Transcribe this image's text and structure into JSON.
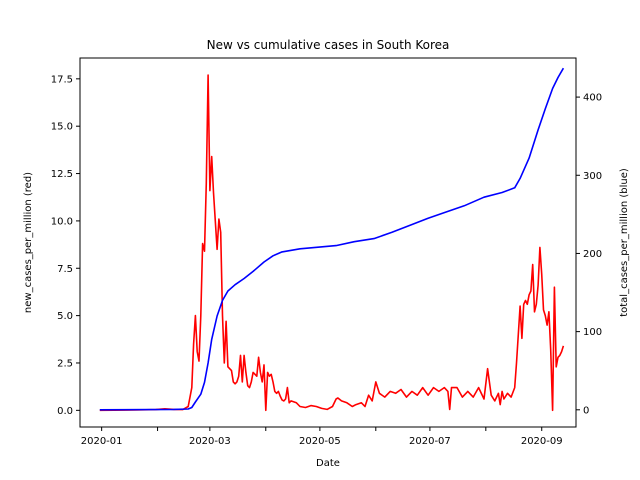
{
  "chart_data": {
    "type": "line",
    "title": "New vs cumulative cases in South Korea",
    "xlabel": "Date",
    "ylabel_left": "new_cases_per_million (red)",
    "ylabel_right": "total_cases_per_million (blue)",
    "x_range": [
      "2019-12-20",
      "2020-09-20"
    ],
    "ylim_left": [
      -0.88,
      18.6
    ],
    "ylim_right": [
      -22,
      450
    ],
    "x_ticks": [
      "2020-01",
      "2020-03",
      "2020-05",
      "2020-07",
      "2020-09"
    ],
    "x_minor_ticks": [
      "2020-02",
      "2020-04",
      "2020-06",
      "2020-08"
    ],
    "y_ticks_left": [
      "0.0",
      "2.5",
      "5.0",
      "7.5",
      "10.0",
      "12.5",
      "15.0",
      "17.5"
    ],
    "y_ticks_right": [
      "0",
      "100",
      "200",
      "300",
      "400"
    ],
    "grid": false,
    "series": [
      {
        "color": "#ff0000",
        "axis": "left",
        "points": [
          [
            "2019-12-31",
            0.0
          ],
          [
            "2020-01-20",
            0.02
          ],
          [
            "2020-01-31",
            0.04
          ],
          [
            "2020-02-05",
            0.08
          ],
          [
            "2020-02-10",
            0.05
          ],
          [
            "2020-02-15",
            0.04
          ],
          [
            "2020-02-18",
            0.2
          ],
          [
            "2020-02-20",
            1.2
          ],
          [
            "2020-02-21",
            3.5
          ],
          [
            "2020-02-22",
            5.0
          ],
          [
            "2020-02-23",
            3.1
          ],
          [
            "2020-02-24",
            2.6
          ],
          [
            "2020-02-25",
            5.0
          ],
          [
            "2020-02-26",
            8.8
          ],
          [
            "2020-02-27",
            8.4
          ],
          [
            "2020-02-28",
            12.0
          ],
          [
            "2020-02-29",
            17.7
          ],
          [
            "2020-03-01",
            11.6
          ],
          [
            "2020-03-02",
            13.4
          ],
          [
            "2020-03-03",
            11.5
          ],
          [
            "2020-03-04",
            10.0
          ],
          [
            "2020-03-05",
            8.5
          ],
          [
            "2020-03-06",
            10.1
          ],
          [
            "2020-03-07",
            9.4
          ],
          [
            "2020-03-08",
            5.0
          ],
          [
            "2020-03-09",
            2.5
          ],
          [
            "2020-03-10",
            4.7
          ],
          [
            "2020-03-11",
            2.3
          ],
          [
            "2020-03-12",
            2.2
          ],
          [
            "2020-03-13",
            2.1
          ],
          [
            "2020-03-14",
            1.5
          ],
          [
            "2020-03-15",
            1.4
          ],
          [
            "2020-03-16",
            1.5
          ],
          [
            "2020-03-17",
            1.8
          ],
          [
            "2020-03-18",
            2.9
          ],
          [
            "2020-03-19",
            1.5
          ],
          [
            "2020-03-20",
            2.9
          ],
          [
            "2020-03-21",
            2.0
          ],
          [
            "2020-03-22",
            1.3
          ],
          [
            "2020-03-23",
            1.2
          ],
          [
            "2020-03-24",
            1.5
          ],
          [
            "2020-03-25",
            2.0
          ],
          [
            "2020-03-26",
            1.9
          ],
          [
            "2020-03-27",
            1.8
          ],
          [
            "2020-03-28",
            2.8
          ],
          [
            "2020-03-29",
            2.0
          ],
          [
            "2020-03-30",
            1.5
          ],
          [
            "2020-03-31",
            2.4
          ],
          [
            "2020-04-01",
            0.0
          ],
          [
            "2020-04-02",
            2.0
          ],
          [
            "2020-04-03",
            1.8
          ],
          [
            "2020-04-04",
            1.9
          ],
          [
            "2020-04-05",
            1.5
          ],
          [
            "2020-04-06",
            1.0
          ],
          [
            "2020-04-07",
            0.9
          ],
          [
            "2020-04-08",
            1.0
          ],
          [
            "2020-04-09",
            0.75
          ],
          [
            "2020-04-10",
            0.55
          ],
          [
            "2020-04-11",
            0.5
          ],
          [
            "2020-04-12",
            0.6
          ],
          [
            "2020-04-13",
            1.2
          ],
          [
            "2020-04-14",
            0.4
          ],
          [
            "2020-04-15",
            0.5
          ],
          [
            "2020-04-18",
            0.4
          ],
          [
            "2020-04-20",
            0.2
          ],
          [
            "2020-04-23",
            0.15
          ],
          [
            "2020-04-26",
            0.25
          ],
          [
            "2020-04-29",
            0.2
          ],
          [
            "2020-05-02",
            0.1
          ],
          [
            "2020-05-05",
            0.05
          ],
          [
            "2020-05-08",
            0.2
          ],
          [
            "2020-05-10",
            0.6
          ],
          [
            "2020-05-11",
            0.65
          ],
          [
            "2020-05-13",
            0.5
          ],
          [
            "2020-05-16",
            0.4
          ],
          [
            "2020-05-19",
            0.2
          ],
          [
            "2020-05-21",
            0.3
          ],
          [
            "2020-05-24",
            0.4
          ],
          [
            "2020-05-26",
            0.2
          ],
          [
            "2020-05-28",
            0.8
          ],
          [
            "2020-05-30",
            0.5
          ],
          [
            "2020-06-01",
            1.5
          ],
          [
            "2020-06-03",
            0.9
          ],
          [
            "2020-06-06",
            0.7
          ],
          [
            "2020-06-09",
            1.0
          ],
          [
            "2020-06-12",
            0.9
          ],
          [
            "2020-06-15",
            1.1
          ],
          [
            "2020-06-18",
            0.7
          ],
          [
            "2020-06-21",
            1.0
          ],
          [
            "2020-06-24",
            0.8
          ],
          [
            "2020-06-27",
            1.2
          ],
          [
            "2020-06-30",
            0.8
          ],
          [
            "2020-07-03",
            1.2
          ],
          [
            "2020-07-06",
            1.0
          ],
          [
            "2020-07-09",
            1.2
          ],
          [
            "2020-07-11",
            1.0
          ],
          [
            "2020-07-12",
            0.05
          ],
          [
            "2020-07-13",
            1.2
          ],
          [
            "2020-07-16",
            1.2
          ],
          [
            "2020-07-19",
            0.7
          ],
          [
            "2020-07-22",
            1.0
          ],
          [
            "2020-07-25",
            0.7
          ],
          [
            "2020-07-28",
            1.2
          ],
          [
            "2020-07-31",
            0.6
          ],
          [
            "2020-08-02",
            2.2
          ],
          [
            "2020-08-04",
            0.8
          ],
          [
            "2020-08-06",
            0.5
          ],
          [
            "2020-08-08",
            0.9
          ],
          [
            "2020-08-09",
            0.3
          ],
          [
            "2020-08-10",
            1.0
          ],
          [
            "2020-08-11",
            0.6
          ],
          [
            "2020-08-13",
            0.9
          ],
          [
            "2020-08-15",
            0.7
          ],
          [
            "2020-08-17",
            1.2
          ],
          [
            "2020-08-18",
            2.5
          ],
          [
            "2020-08-20",
            5.5
          ],
          [
            "2020-08-21",
            3.8
          ],
          [
            "2020-08-22",
            5.6
          ],
          [
            "2020-08-23",
            5.8
          ],
          [
            "2020-08-24",
            5.6
          ],
          [
            "2020-08-25",
            6.1
          ],
          [
            "2020-08-26",
            6.3
          ],
          [
            "2020-08-27",
            7.7
          ],
          [
            "2020-08-28",
            5.2
          ],
          [
            "2020-08-29",
            5.6
          ],
          [
            "2020-08-30",
            6.6
          ],
          [
            "2020-08-31",
            8.6
          ],
          [
            "2020-09-01",
            7.2
          ],
          [
            "2020-09-02",
            5.3
          ],
          [
            "2020-09-03",
            5.0
          ],
          [
            "2020-09-04",
            4.5
          ],
          [
            "2020-09-05",
            5.2
          ],
          [
            "2020-09-06",
            3.2
          ],
          [
            "2020-09-07",
            0.0
          ],
          [
            "2020-09-08",
            6.5
          ],
          [
            "2020-09-09",
            2.3
          ],
          [
            "2020-09-10",
            2.8
          ],
          [
            "2020-09-11",
            2.9
          ],
          [
            "2020-09-12",
            3.1
          ],
          [
            "2020-09-13",
            3.4
          ]
        ]
      },
      {
        "color": "#0000ff",
        "axis": "right",
        "points": [
          [
            "2019-12-31",
            0
          ],
          [
            "2020-02-10",
            0.5
          ],
          [
            "2020-02-18",
            1
          ],
          [
            "2020-02-20",
            3
          ],
          [
            "2020-02-22",
            10
          ],
          [
            "2020-02-25",
            20
          ],
          [
            "2020-02-27",
            35
          ],
          [
            "2020-02-29",
            60
          ],
          [
            "2020-03-02",
            90
          ],
          [
            "2020-03-05",
            120
          ],
          [
            "2020-03-08",
            140
          ],
          [
            "2020-03-11",
            152
          ],
          [
            "2020-03-15",
            160
          ],
          [
            "2020-03-20",
            168
          ],
          [
            "2020-03-25",
            177
          ],
          [
            "2020-03-31",
            189
          ],
          [
            "2020-04-05",
            197
          ],
          [
            "2020-04-10",
            202
          ],
          [
            "2020-04-20",
            206
          ],
          [
            "2020-04-30",
            208
          ],
          [
            "2020-05-10",
            210
          ],
          [
            "2020-05-20",
            215
          ],
          [
            "2020-05-31",
            219
          ],
          [
            "2020-06-10",
            227
          ],
          [
            "2020-06-20",
            236
          ],
          [
            "2020-06-30",
            245
          ],
          [
            "2020-07-10",
            253
          ],
          [
            "2020-07-20",
            261
          ],
          [
            "2020-07-31",
            272
          ],
          [
            "2020-08-10",
            278
          ],
          [
            "2020-08-17",
            284
          ],
          [
            "2020-08-20",
            296
          ],
          [
            "2020-08-25",
            322
          ],
          [
            "2020-08-30",
            358
          ],
          [
            "2020-09-03",
            385
          ],
          [
            "2020-09-07",
            411
          ],
          [
            "2020-09-10",
            425
          ],
          [
            "2020-09-13",
            437
          ]
        ]
      }
    ]
  }
}
